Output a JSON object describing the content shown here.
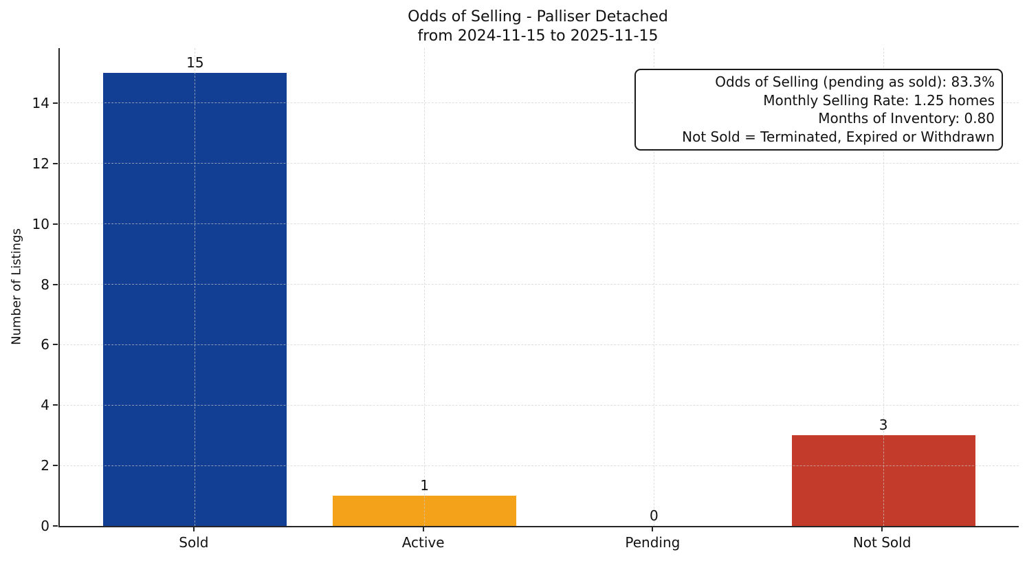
{
  "chart_data": {
    "type": "bar",
    "title": "Odds of Selling - Palliser Detached",
    "subtitle": "from 2024-11-15 to 2025-11-15",
    "categories": [
      "Sold",
      "Active",
      "Pending",
      "Not Sold"
    ],
    "values": [
      15,
      1,
      0,
      3
    ],
    "bar_colors": [
      "#123f93",
      "#f3a21a",
      "#999999",
      "#c23b2b"
    ],
    "xlabel": "",
    "ylabel": "Number of Listings",
    "ylim": [
      0,
      15.82
    ],
    "yticks": [
      0,
      2,
      4,
      6,
      8,
      10,
      12,
      14
    ],
    "grid": true,
    "legend_position": "none",
    "annotation": {
      "lines": [
        "Odds of Selling (pending as sold): 83.3%",
        "Monthly Selling Rate: 1.25 homes",
        "Months of Inventory: 0.80",
        "Not Sold = Terminated, Expired or Withdrawn"
      ]
    },
    "colors": {
      "axis": "#262626",
      "grid": "#cdcdcd",
      "text": "#111111",
      "background": "#ffffff"
    }
  }
}
